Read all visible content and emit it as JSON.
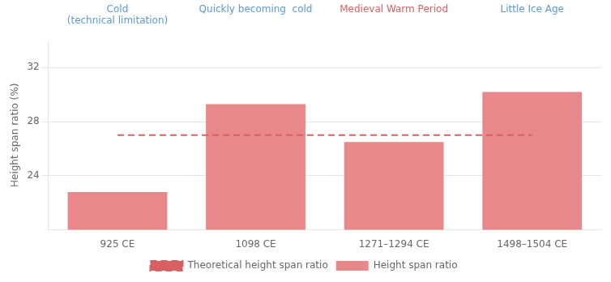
{
  "chart_data": {
    "type": "bar",
    "categories": [
      "925 CE",
      "1098 CE",
      "1271–1294 CE",
      "1498–1504 CE"
    ],
    "series": [
      {
        "name": "Height span ratio",
        "type": "bar",
        "color": "#e8888a",
        "values": [
          22.8,
          29.3,
          26.5,
          30.2
        ]
      },
      {
        "name": "Theoretical height span ratio",
        "type": "line",
        "color": "#d96060",
        "line_style": "dashed",
        "values": [
          27.0,
          27.0,
          27.0,
          27.0
        ]
      }
    ],
    "annotations": [
      {
        "text": "Cold\n(technical limitation)",
        "color": "#5b9bd5"
      },
      {
        "text": "Quickly becoming  cold",
        "color": "#5b9bd5"
      },
      {
        "text": "Medieval Warm Period",
        "color": "#d96060"
      },
      {
        "text": "Little Ice Age",
        "color": "#5b9bd5"
      }
    ],
    "ylabel": "Height span ratio (%)",
    "ylim": [
      20,
      34
    ],
    "yticks": [
      24,
      28,
      32
    ],
    "grid": true,
    "legend": "bottom"
  }
}
